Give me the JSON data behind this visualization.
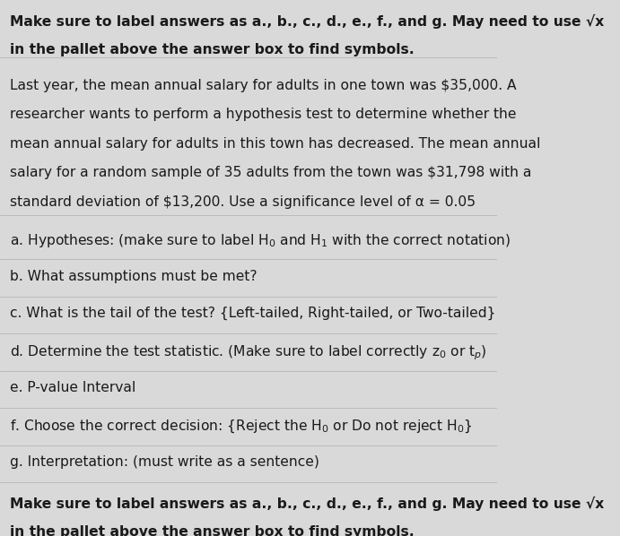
{
  "background_color": "#d9d9d9",
  "text_color": "#1a1a1a",
  "line1_bold": "Make sure to label answers as a., b., c., d., e., f., and g. May need to use √x",
  "line2_bold": "in the pallet above the answer box to find symbols.",
  "problem_lines": [
    "Last year, the mean annual salary for adults in one town was $35,000. A",
    "researcher wants to perform a hypothesis test to determine whether the",
    "mean annual salary for adults in this town has decreased. The mean annual",
    "salary for a random sample of 35 adults from the town was $31,798 with a",
    "standard deviation of $13,200. Use a significance level of α = 0.05"
  ],
  "answer_lines": [
    "a. Hypotheses: (make sure to label H$_0$ and H$_1$ with the correct notation)",
    "b. What assumptions must be met?",
    "c. What is the tail of the test? {Left-tailed, Right-tailed, or Two-tailed}",
    "d. Determine the test statistic. (Make sure to label correctly z$_0$ or t$_p$)",
    "e. P-value Interval",
    "f. Choose the correct decision: {Reject the H$_0$ or Do not reject H$_0$}",
    "g. Interpretation: (must write as a sentence)"
  ],
  "font_size_bold": 11.2,
  "font_size_problem": 11.2,
  "font_size_answer": 11.2,
  "sep_color": "#bbbbbb",
  "sep_linewidth": 0.7
}
